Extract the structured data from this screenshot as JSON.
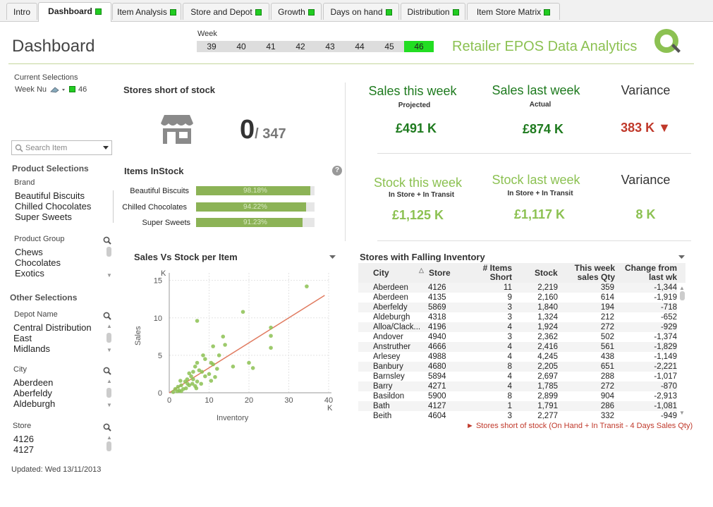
{
  "tabs": [
    {
      "label": "Intro",
      "dot": false
    },
    {
      "label": "Dashboard",
      "dot": true
    },
    {
      "label": "Item Analysis",
      "dot": true
    },
    {
      "label": "Store and Depot",
      "dot": true
    },
    {
      "label": "Growth",
      "dot": true
    },
    {
      "label": "Days on hand",
      "dot": true
    },
    {
      "label": "Distribution",
      "dot": true
    },
    {
      "label": "Item Store Matrix",
      "dot": true
    }
  ],
  "header": {
    "title": "Dashboard",
    "week_label": "Week",
    "weeks": [
      "39",
      "40",
      "41",
      "42",
      "43",
      "44",
      "45",
      "46"
    ],
    "selected_week": "46",
    "brand": "Retailer EPOS Data Analytics"
  },
  "left": {
    "current_selections_label": "Current Selections",
    "week_field": "Week Nu",
    "week_value": "46",
    "search_placeholder": "Search Item",
    "product_selections": "Product Selections",
    "brand_label": "Brand",
    "brands": [
      "Beautiful Biscuits",
      "Chilled Chocolates",
      "Super Sweets"
    ],
    "product_group_label": "Product Group",
    "product_groups": [
      "Chews",
      "Chocolates",
      "Exotics"
    ],
    "other_selections": "Other Selections",
    "depot_label": "Depot Name",
    "depots": [
      "Central Distribution",
      "East",
      "Midlands"
    ],
    "city_label": "City",
    "cities": [
      "Aberdeen",
      "Aberfeldy",
      "Aldeburgh"
    ],
    "store_label": "Store",
    "stores": [
      "4126",
      "4127"
    ],
    "updated": "Updated: Wed 13/11/2013"
  },
  "stock_short": {
    "title": "Stores short of stock",
    "value": "0",
    "of": "/ 347"
  },
  "items_instock": {
    "title": "Items InStock",
    "rows": [
      {
        "label": "Beautiful Biscuits",
        "pct": 98.18,
        "text": "98.18%"
      },
      {
        "label": "Chilled Chocolates",
        "pct": 94.22,
        "text": "94.22%"
      },
      {
        "label": "Super Sweets",
        "pct": 91.23,
        "text": "91.23%"
      }
    ]
  },
  "kpis": {
    "sales_this_week": "Sales this week",
    "projected": "Projected",
    "sales_this_value": "£491 K",
    "sales_last_week": "Sales last week",
    "actual": "Actual",
    "sales_last_value": "£874 K",
    "variance1": "Variance",
    "variance1_value": "383 K ▼",
    "stock_this_week": "Stock this week",
    "in_store1": "In Store + In Transit",
    "stock_this_value": "£1,125 K",
    "stock_last_week": "Stock last week",
    "in_store2": "In Store + In Transit",
    "stock_last_value": "£1,117 K",
    "variance2": "Variance",
    "variance2_value": "8 K"
  },
  "scatter": {
    "title": "Sales Vs Stock per Item"
  },
  "chart_data": {
    "type": "scatter",
    "title": "Sales Vs Stock per Item",
    "xlabel": "Inventory",
    "ylabel": "Sales",
    "x_unit": "K",
    "y_unit": "K",
    "xlim": [
      0,
      40
    ],
    "ylim": [
      0,
      16
    ],
    "xticks": [
      "0",
      "10",
      "20",
      "30",
      "40"
    ],
    "yticks": [
      "0",
      "5",
      "10",
      "15"
    ],
    "trendline": [
      [
        0,
        0
      ],
      [
        39,
        13
      ]
    ],
    "points": [
      [
        34.5,
        14.2
      ],
      [
        18.5,
        10.8
      ],
      [
        7,
        9.6
      ],
      [
        25.5,
        8.7
      ],
      [
        25.5,
        7.6
      ],
      [
        25.5,
        6
      ],
      [
        13.5,
        7.5
      ],
      [
        14,
        6.4
      ],
      [
        11,
        6.2
      ],
      [
        8.5,
        5
      ],
      [
        12.5,
        5
      ],
      [
        9,
        4.5
      ],
      [
        10.5,
        4
      ],
      [
        11,
        3.8
      ],
      [
        12,
        3.2
      ],
      [
        16,
        3.5
      ],
      [
        20,
        4
      ],
      [
        21,
        3.3
      ],
      [
        7,
        4
      ],
      [
        7.5,
        3
      ],
      [
        6.5,
        3.5
      ],
      [
        6,
        2.8
      ],
      [
        5.5,
        2.2
      ],
      [
        5,
        2.6
      ],
      [
        4.5,
        1.8
      ],
      [
        4,
        1.5
      ],
      [
        6,
        1.8
      ],
      [
        7,
        1.5
      ],
      [
        8,
        1.2
      ],
      [
        6.5,
        0.9
      ],
      [
        5,
        1
      ],
      [
        4.2,
        0.6
      ],
      [
        3,
        1
      ],
      [
        3.5,
        0.5
      ],
      [
        2.5,
        0.3
      ],
      [
        2,
        0.2
      ],
      [
        1.5,
        0.5
      ],
      [
        9,
        2.2
      ],
      [
        10,
        2.5
      ],
      [
        10.5,
        1.6
      ],
      [
        5.8,
        1.2
      ],
      [
        3,
        0.2
      ],
      [
        2.2,
        0.8
      ],
      [
        4.6,
        1.2
      ],
      [
        8.2,
        2.8
      ],
      [
        11.5,
        2.1
      ],
      [
        6.8,
        0.6
      ],
      [
        1,
        0.1
      ],
      [
        2.8,
        1.6
      ]
    ]
  },
  "falling": {
    "title": "Stores with Falling Inventory",
    "headers": {
      "city": "City",
      "store": "Store",
      "items_short": "# Items Short",
      "stock": "Stock",
      "this_week": "This week sales Qty",
      "change": "Change from last wk"
    },
    "rows": [
      [
        "Aberdeen",
        "4126",
        "11",
        "2,219",
        "359",
        "-1,344"
      ],
      [
        "Aberdeen",
        "4135",
        "9",
        "2,160",
        "614",
        "-1,919"
      ],
      [
        "Aberfeldy",
        "5869",
        "3",
        "1,840",
        "194",
        "-718"
      ],
      [
        "Aldeburgh",
        "4318",
        "3",
        "1,324",
        "212",
        "-652"
      ],
      [
        "Alloa/Clack...",
        "4196",
        "4",
        "1,924",
        "272",
        "-929"
      ],
      [
        "Andover",
        "4940",
        "3",
        "2,362",
        "502",
        "-1,374"
      ],
      [
        "Anstruther",
        "4666",
        "4",
        "2,416",
        "561",
        "-1,829"
      ],
      [
        "Arlesey",
        "4988",
        "4",
        "4,245",
        "438",
        "-1,149"
      ],
      [
        "Banbury",
        "4680",
        "8",
        "2,205",
        "651",
        "-2,221"
      ],
      [
        "Barnsley",
        "5894",
        "4",
        "2,697",
        "288",
        "-1,017"
      ],
      [
        "Barry",
        "4271",
        "4",
        "1,785",
        "272",
        "-870"
      ],
      [
        "Basildon",
        "5900",
        "8",
        "2,899",
        "904",
        "-2,913"
      ],
      [
        "Bath",
        "4127",
        "1",
        "1,791",
        "286",
        "-1,081"
      ],
      [
        "Beith",
        "4604",
        "3",
        "2,277",
        "332",
        "-949"
      ]
    ],
    "footnote": "► Stores short of stock (On Hand + In Transit - 4 Days Sales Qty)"
  }
}
